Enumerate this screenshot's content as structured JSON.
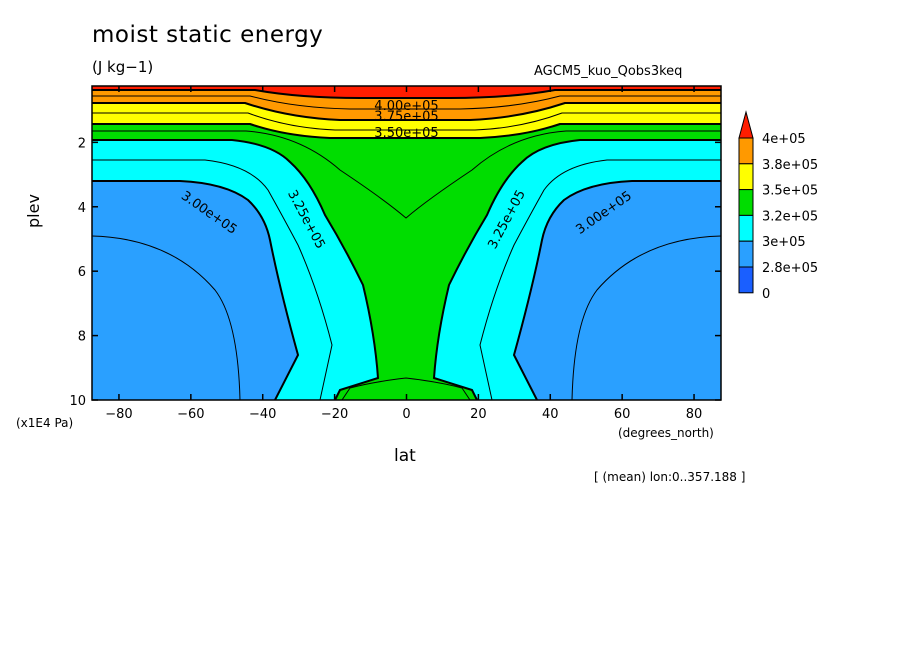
{
  "chart_data": {
    "type": "contour",
    "title": "moist static energy",
    "units": "(J kg−1)",
    "model": "AGCM5_kuo_Qobs3keq",
    "xlabel": "lat",
    "xunits": "(degrees_north)",
    "ylabel": "plev",
    "yunits": "(x1E4 Pa)",
    "footnote": "[ (mean) lon:0..357.188 ]",
    "xlim": [
      -87.5,
      87.5
    ],
    "ylim": [
      10,
      0.25
    ],
    "xticks": [
      {
        "v": -80,
        "label": "−80"
      },
      {
        "v": -60,
        "label": "−60"
      },
      {
        "v": -40,
        "label": "−40"
      },
      {
        "v": -20,
        "label": "−20"
      },
      {
        "v": 0,
        "label": "0"
      },
      {
        "v": 20,
        "label": "20"
      },
      {
        "v": 40,
        "label": "40"
      },
      {
        "v": 60,
        "label": "60"
      },
      {
        "v": 80,
        "label": "80"
      }
    ],
    "yticks": [
      {
        "v": 2,
        "label": "2"
      },
      {
        "v": 4,
        "label": "4"
      },
      {
        "v": 6,
        "label": "6"
      },
      {
        "v": 8,
        "label": "8"
      },
      {
        "v": 10,
        "label": "10"
      }
    ],
    "colorbar": {
      "labels": [
        "4e+05",
        "3.8e+05",
        "3.5e+05",
        "3.2e+05",
        "3e+05",
        "2.8e+05",
        "0"
      ],
      "colors": [
        "#ff1d00",
        "#ff9900",
        "#ffff00",
        "#00dd00",
        "#00ffff",
        "#2aa0ff",
        "#1a5fff"
      ]
    },
    "contour_labels": [
      {
        "text": "4.00e+05",
        "x": 0,
        "y": 0.88,
        "rot": 0
      },
      {
        "text": "3.75e+05",
        "x": 0,
        "y": 1.22,
        "rot": 0
      },
      {
        "text": "3.50e+05",
        "x": 0,
        "y": 1.72,
        "rot": 0
      },
      {
        "text": "3.00e+05",
        "x": -55,
        "y": 4.2,
        "rot": 35
      },
      {
        "text": "3.25e+05",
        "x": -28,
        "y": 4.4,
        "rot": 62
      },
      {
        "text": "3.25e+05",
        "x": 28,
        "y": 4.4,
        "rot": -62
      },
      {
        "text": "3.00e+05",
        "x": 55,
        "y": 4.2,
        "rot": -35
      }
    ]
  }
}
